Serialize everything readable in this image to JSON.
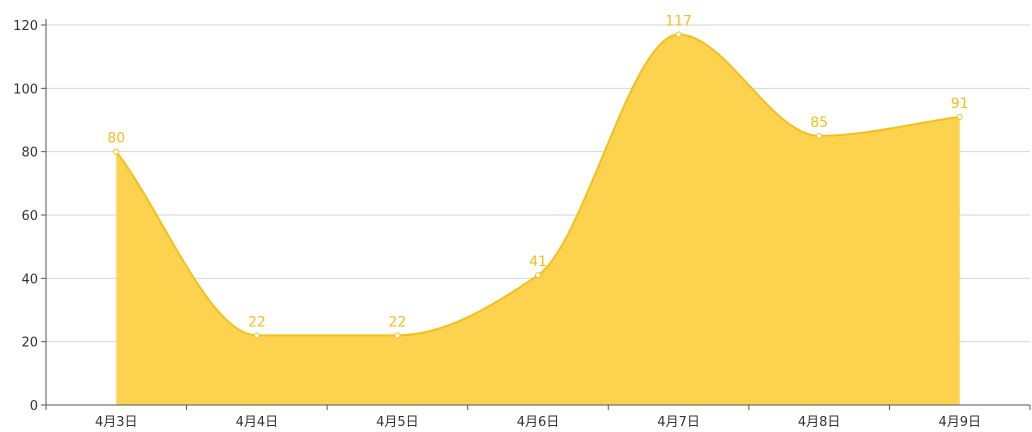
{
  "chart_data": {
    "type": "area",
    "categories": [
      "4月3日",
      "4月4日",
      "4月5日",
      "4月6日",
      "4月7日",
      "4月8日",
      "4月9日"
    ],
    "series": [
      {
        "values": [
          80,
          22,
          22,
          41,
          117,
          85,
          91
        ]
      }
    ],
    "ylim": [
      0,
      120
    ],
    "yticks": [
      0,
      20,
      40,
      60,
      80,
      100,
      120
    ],
    "grid": true,
    "smooth": true,
    "data_labels": true,
    "colors": {
      "area_fill": "#fdd24f",
      "line": "#f2c01e",
      "label": "#f0be1c",
      "grid": "#d6d6d6",
      "axis": "#555555",
      "tick_text": "#333333"
    }
  }
}
